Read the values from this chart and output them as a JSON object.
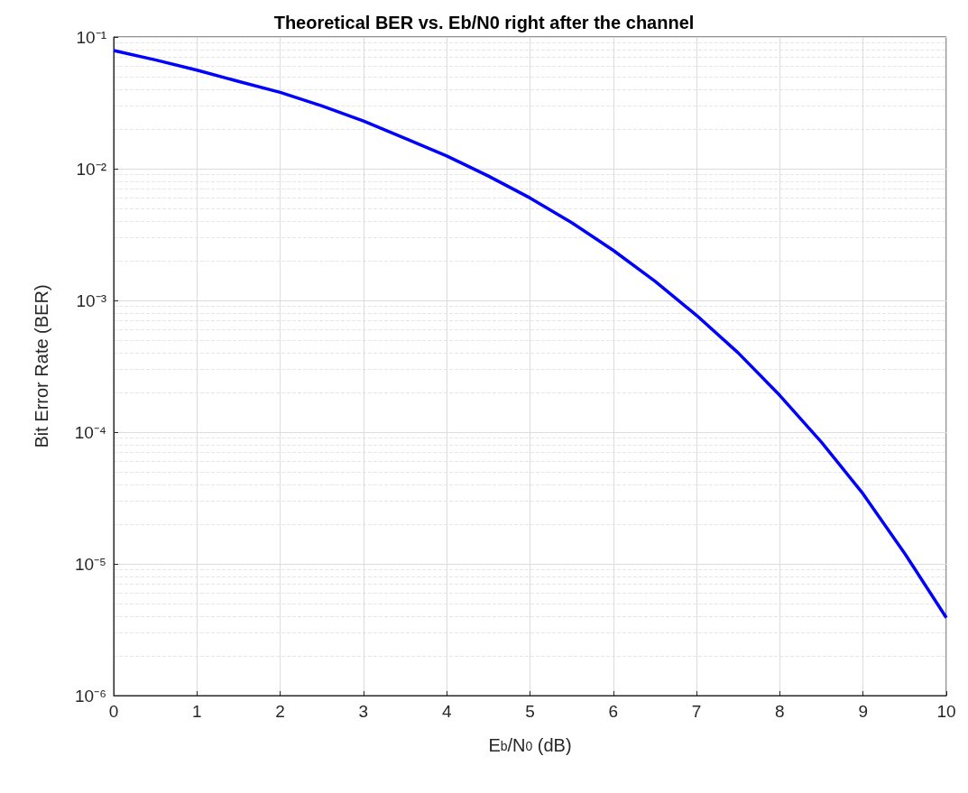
{
  "chart_data": {
    "type": "line",
    "title": "Theoretical BER vs. Eb/N0 right after the channel",
    "xlabel": "E$_{b}$/N$_{0}$ (dB)",
    "ylabel": "Bit Error Rate (BER)",
    "x": [
      0,
      0.5,
      1,
      1.5,
      2,
      2.5,
      3,
      3.5,
      4,
      4.5,
      5,
      5.5,
      6,
      6.5,
      7,
      7.5,
      8,
      8.5,
      9,
      9.5,
      10
    ],
    "series": [
      {
        "color": "#0000ff",
        "values": [
          0.079,
          0.067,
          0.056,
          0.046,
          0.038,
          0.03,
          0.023,
          0.017,
          0.0125,
          0.0088,
          0.006,
          0.0039,
          0.0024,
          0.0014,
          0.00077,
          0.0004,
          0.00019,
          8.4e-05,
          3.4e-05,
          1.2e-05,
          3.9e-06
        ]
      }
    ],
    "xlim": [
      0,
      10
    ],
    "xticks": [
      0,
      1,
      2,
      3,
      4,
      5,
      6,
      7,
      8,
      9,
      10
    ],
    "ylim": [
      1e-06,
      0.1
    ],
    "yticks": [
      {
        "value": 1e-06,
        "label": "10⁻⁶"
      },
      {
        "value": 1e-05,
        "label": "10⁻⁵"
      },
      {
        "value": 0.0001,
        "label": "10⁻⁴"
      },
      {
        "value": 0.001,
        "label": "10⁻³"
      },
      {
        "value": 0.01,
        "label": "10⁻²"
      },
      {
        "value": 0.1,
        "label": "10⁻¹"
      }
    ],
    "log": "y",
    "grid": true,
    "marker": "none",
    "line_style": "solid"
  }
}
